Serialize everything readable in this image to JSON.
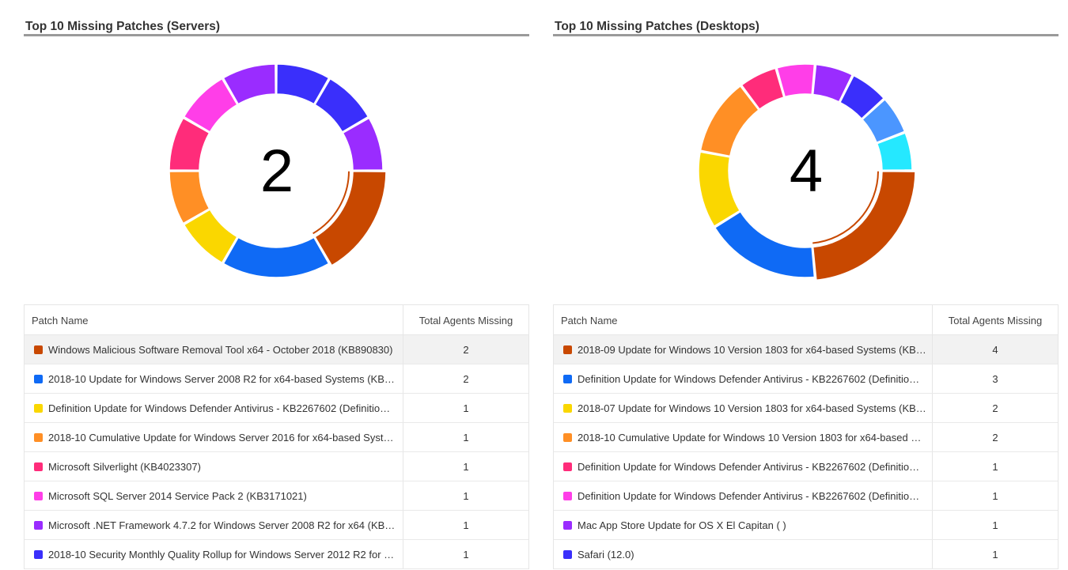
{
  "panels": [
    {
      "id": "servers",
      "title": "Top 10 Missing Patches (Servers)",
      "center_value": "2",
      "columns": {
        "name": "Patch Name",
        "count": "Total Agents Missing"
      },
      "selected_row": 0,
      "chart_data": {
        "type": "pie",
        "style": "donut",
        "categories": [
          "Windows Malicious Software Removal Tool x64 - October 2018 (KB890830)",
          "2018-10 Update for Windows Server 2008 R2 for x64-based Systems (KB31…",
          "Definition Update for Windows Defender Antivirus - KB2267602 (Definitio…",
          "2018-10 Cumulative Update for Windows Server 2016 for x64-based Syste…",
          "Microsoft Silverlight (KB4023307)",
          "Microsoft SQL Server 2014 Service Pack 2 (KB3171021)",
          "Microsoft .NET Framework 4.7.2 for Windows Server 2008 R2 for x64 (KB40…",
          "2018-10 Security Monthly Quality Rollup for Windows Server 2012 R2 for x…",
          "",
          ""
        ],
        "values": [
          2,
          2,
          1,
          1,
          1,
          1,
          1,
          1,
          1,
          1
        ],
        "colors": [
          "#c84800",
          "#0f6af5",
          "#fad700",
          "#ff8f25",
          "#ff2c7a",
          "#ff3ee8",
          "#9a2cff",
          "#3a2ffb",
          "#3a2ffb",
          "#9a2cff"
        ]
      },
      "segment_colors": [
        "#c84800",
        "#0f6af5",
        "#fad700",
        "#ff8f25",
        "#ff2c7a",
        "#ff3ee8",
        "#9a2cff",
        "#3a2ffb"
      ],
      "rows": [
        {
          "name": "Windows Malicious Software Removal Tool x64 - October 2018 (KB890830)",
          "count": "2",
          "color": "#c84800"
        },
        {
          "name": "2018-10 Update for Windows Server 2008 R2 for x64-based Systems (KB31…",
          "count": "2",
          "color": "#0f6af5"
        },
        {
          "name": "Definition Update for Windows Defender Antivirus - KB2267602 (Definitio…",
          "count": "1",
          "color": "#fad700"
        },
        {
          "name": "2018-10 Cumulative Update for Windows Server 2016 for x64-based Syste…",
          "count": "1",
          "color": "#ff8f25"
        },
        {
          "name": "Microsoft Silverlight (KB4023307)",
          "count": "1",
          "color": "#ff2c7a"
        },
        {
          "name": "Microsoft SQL Server 2014 Service Pack 2 (KB3171021)",
          "count": "1",
          "color": "#ff3ee8"
        },
        {
          "name": "Microsoft .NET Framework 4.7.2 for Windows Server 2008 R2 for x64 (KB40…",
          "count": "1",
          "color": "#9a2cff"
        },
        {
          "name": "2018-10 Security Monthly Quality Rollup for Windows Server 2012 R2 for x…",
          "count": "1",
          "color": "#3a2ffb"
        }
      ]
    },
    {
      "id": "desktops",
      "title": "Top 10 Missing Patches (Desktops)",
      "center_value": "4",
      "columns": {
        "name": "Patch Name",
        "count": "Total Agents Missing"
      },
      "selected_row": 0,
      "chart_data": {
        "type": "pie",
        "style": "donut",
        "categories": [
          "2018-09 Update for Windows 10 Version 1803 for x64-based Systems (KB4…",
          "Definition Update for Windows Defender Antivirus - KB2267602 (Definitio…",
          "2018-07 Update for Windows 10 Version 1803 for x64-based Systems (KB4…",
          "2018-10 Cumulative Update for Windows 10 Version 1803 for x64-based S…",
          "Definition Update for Windows Defender Antivirus - KB2267602 (Definitio…",
          "Definition Update for Windows Defender Antivirus - KB2267602 (Definitio…",
          "Mac App Store Update for OS X El Capitan ( )",
          "Safari (12.0)",
          "",
          ""
        ],
        "values": [
          4,
          3,
          2,
          2,
          1,
          1,
          1,
          1,
          1,
          1
        ],
        "colors": [
          "#c84800",
          "#0f6af5",
          "#fad700",
          "#ff8f25",
          "#ff2c7a",
          "#ff3ee8",
          "#9a2cff",
          "#3a2ffb",
          "#4b96ff",
          "#25e8ff"
        ]
      },
      "rows": [
        {
          "name": "2018-09 Update for Windows 10 Version 1803 for x64-based Systems (KB4…",
          "count": "4",
          "color": "#c84800"
        },
        {
          "name": "Definition Update for Windows Defender Antivirus - KB2267602 (Definitio…",
          "count": "3",
          "color": "#0f6af5"
        },
        {
          "name": "2018-07 Update for Windows 10 Version 1803 for x64-based Systems (KB4…",
          "count": "2",
          "color": "#fad700"
        },
        {
          "name": "2018-10 Cumulative Update for Windows 10 Version 1803 for x64-based S…",
          "count": "2",
          "color": "#ff8f25"
        },
        {
          "name": "Definition Update for Windows Defender Antivirus - KB2267602 (Definitio…",
          "count": "1",
          "color": "#ff2c7a"
        },
        {
          "name": "Definition Update for Windows Defender Antivirus - KB2267602 (Definitio…",
          "count": "1",
          "color": "#ff3ee8"
        },
        {
          "name": "Mac App Store Update for OS X El Capitan ( )",
          "count": "1",
          "color": "#9a2cff"
        },
        {
          "name": "Safari (12.0)",
          "count": "1",
          "color": "#3a2ffb"
        }
      ]
    }
  ]
}
